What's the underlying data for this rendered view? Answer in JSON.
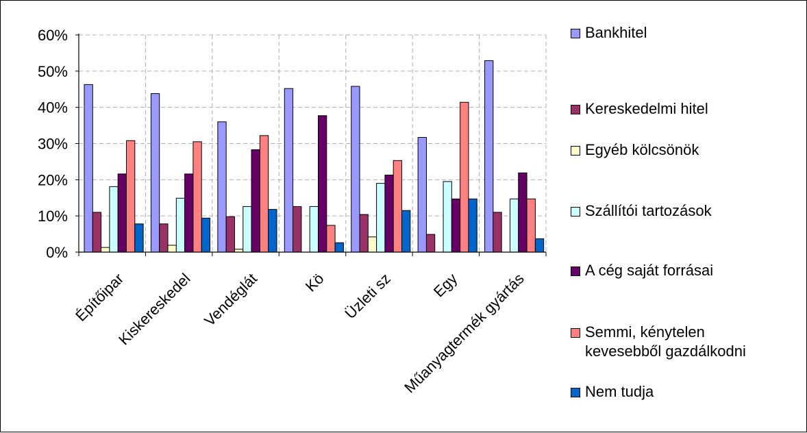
{
  "chart_data": {
    "type": "bar",
    "categories": [
      "Építőipar",
      "Kiskereskedel",
      "Vendéglát",
      "Kö",
      "Üzleti sz",
      "Egy",
      "Műanyagtermék gyártás"
    ],
    "ylim": [
      0,
      60
    ],
    "yticks": [
      "0%",
      "10%",
      "20%",
      "30%",
      "40%",
      "50%",
      "60%"
    ],
    "grid": true,
    "legend_position": "right",
    "series": [
      {
        "name": "Bankhitel",
        "color": "#9999ff",
        "values": [
          46.3,
          43.8,
          36.0,
          45.2,
          45.8,
          31.7,
          52.9
        ]
      },
      {
        "name": "Kereskedelmi hitel",
        "color": "#993366",
        "values": [
          11.0,
          7.8,
          9.8,
          12.6,
          10.4,
          4.9,
          11.0
        ]
      },
      {
        "name": "Egyéb kölcsönök",
        "color": "#ffffcc",
        "values": [
          1.3,
          1.9,
          0.8,
          0.0,
          4.2,
          0.0,
          0.0
        ]
      },
      {
        "name": "Szállítói tartozások",
        "color": "#ccffff",
        "values": [
          18.1,
          14.9,
          12.6,
          12.6,
          19.0,
          19.5,
          14.7
        ]
      },
      {
        "name": "A cég saját forrásai",
        "color": "#660066",
        "values": [
          21.6,
          21.6,
          28.3,
          37.7,
          21.3,
          14.7,
          21.9
        ]
      },
      {
        "name": "Semmi, kénytelen\nkevesebből gazdálkodni",
        "color": "#ff8080",
        "values": [
          30.8,
          30.5,
          32.2,
          7.4,
          25.3,
          41.4,
          14.7
        ]
      },
      {
        "name": "Nem tudja",
        "color": "#0066cc",
        "values": [
          7.8,
          9.4,
          11.8,
          2.6,
          11.5,
          14.7,
          3.7
        ]
      }
    ]
  }
}
